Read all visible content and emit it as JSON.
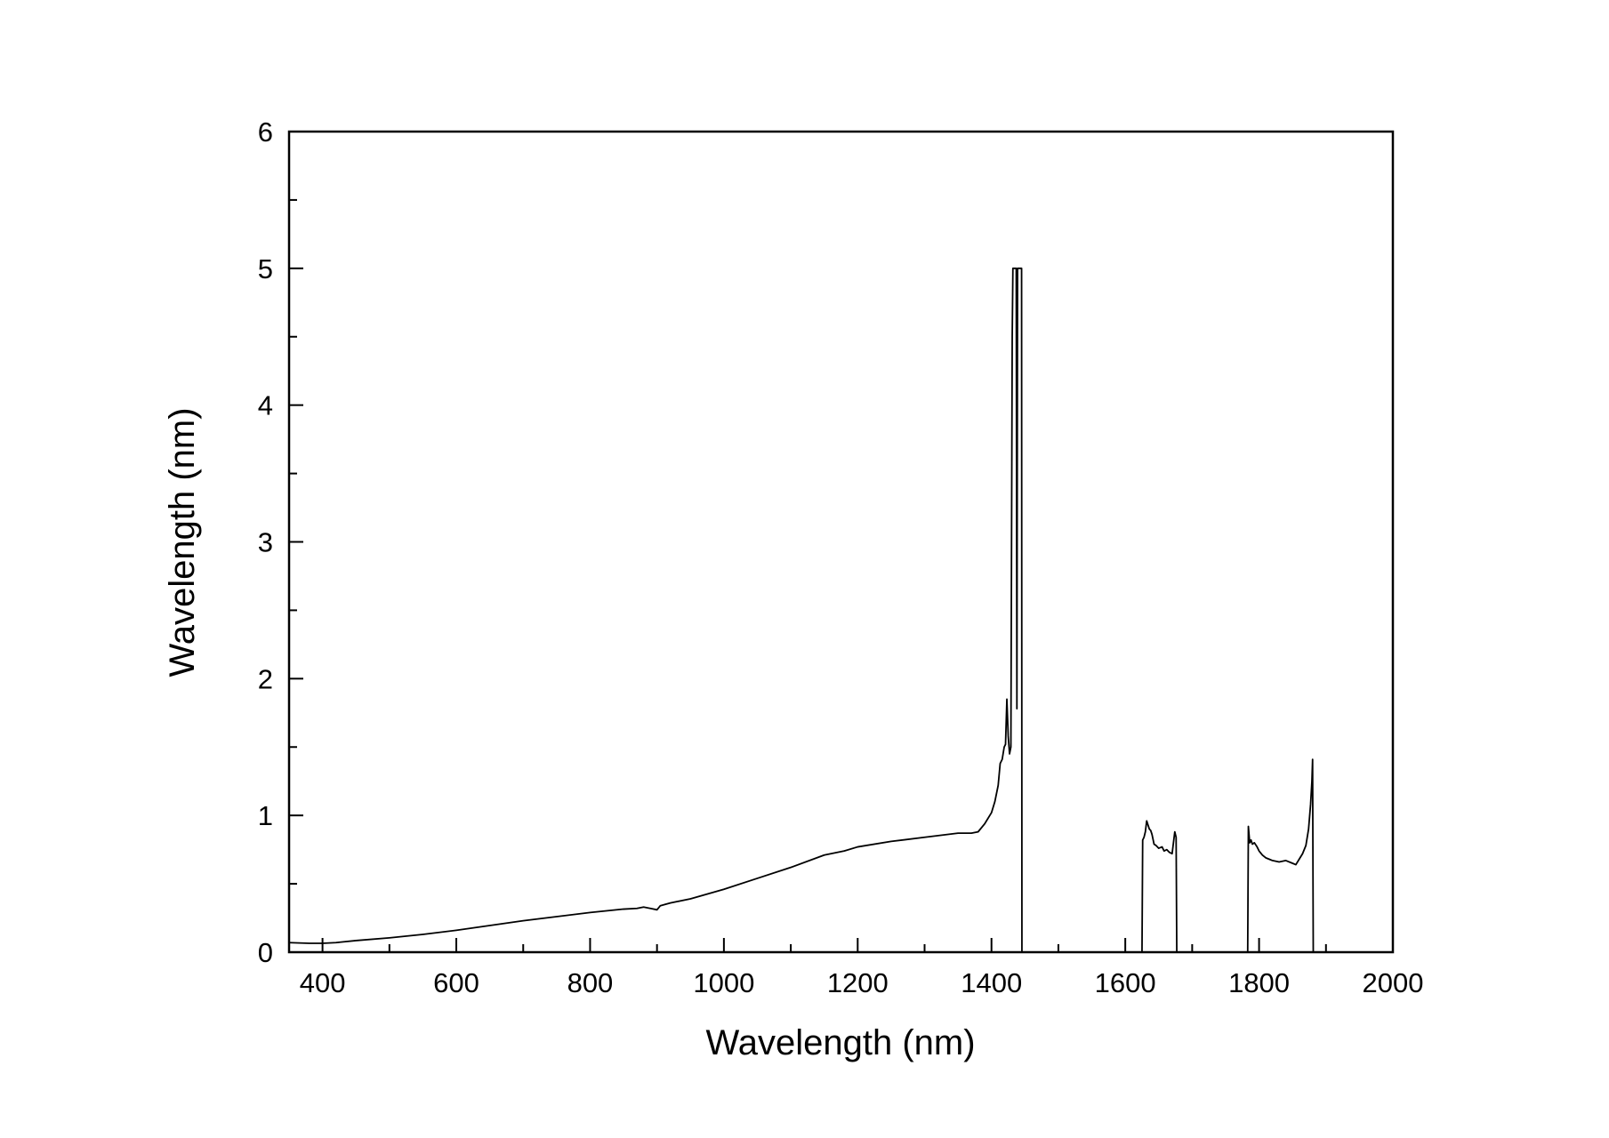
{
  "chart_data": {
    "type": "line",
    "xlabel": "Wavelength (nm)",
    "ylabel": "Wavelength (nm)",
    "xlim": [
      350,
      2000
    ],
    "ylim": [
      0,
      6
    ],
    "x_ticks": [
      400,
      600,
      800,
      1000,
      1200,
      1400,
      1600,
      1800,
      2000
    ],
    "x_tick_labels": [
      "400",
      "600",
      "800",
      "1000",
      "1200",
      "1400",
      "1600",
      "1800",
      "2000"
    ],
    "x_minor_step": 100,
    "y_ticks": [
      0,
      1,
      2,
      3,
      4,
      5,
      6
    ],
    "y_tick_labels": [
      "0",
      "1",
      "2",
      "3",
      "4",
      "5",
      "6"
    ],
    "y_minor_step": 0.5,
    "grid": false,
    "line_color": "#000000",
    "series": [
      {
        "segments": [
          [
            [
              350,
              0.07
            ],
            [
              380,
              0.065
            ],
            [
              400,
              0.065
            ],
            [
              420,
              0.07
            ],
            [
              450,
              0.085
            ],
            [
              500,
              0.105
            ],
            [
              550,
              0.13
            ],
            [
              600,
              0.16
            ],
            [
              650,
              0.195
            ],
            [
              700,
              0.23
            ],
            [
              750,
              0.26
            ],
            [
              800,
              0.29
            ],
            [
              850,
              0.315
            ],
            [
              870,
              0.32
            ],
            [
              880,
              0.33
            ],
            [
              890,
              0.32
            ],
            [
              900,
              0.31
            ],
            [
              905,
              0.34
            ],
            [
              920,
              0.36
            ],
            [
              950,
              0.39
            ],
            [
              1000,
              0.46
            ],
            [
              1050,
              0.54
            ],
            [
              1100,
              0.62
            ],
            [
              1150,
              0.71
            ],
            [
              1180,
              0.74
            ],
            [
              1200,
              0.77
            ],
            [
              1250,
              0.81
            ],
            [
              1300,
              0.84
            ],
            [
              1350,
              0.87
            ],
            [
              1370,
              0.87
            ],
            [
              1380,
              0.88
            ],
            [
              1390,
              0.94
            ],
            [
              1400,
              1.02
            ],
            [
              1405,
              1.1
            ],
            [
              1410,
              1.22
            ],
            [
              1413,
              1.38
            ],
            [
              1416,
              1.41
            ],
            [
              1419,
              1.5
            ],
            [
              1421,
              1.52
            ],
            [
              1423,
              1.85
            ],
            [
              1425,
              1.58
            ],
            [
              1427,
              1.45
            ],
            [
              1429,
              1.5
            ],
            [
              1431,
              4.5
            ],
            [
              1432,
              5.0
            ],
            [
              1437,
              5.0
            ],
            [
              1438,
              1.78
            ],
            [
              1439,
              5.0
            ],
            [
              1445,
              5.0
            ],
            [
              1445.5,
              0
            ]
          ],
          [
            [
              1625,
              0
            ],
            [
              1626,
              0.82
            ],
            [
              1628,
              0.84
            ],
            [
              1630,
              0.88
            ],
            [
              1632,
              0.96
            ],
            [
              1634,
              0.93
            ],
            [
              1636,
              0.9
            ],
            [
              1638,
              0.89
            ],
            [
              1640,
              0.86
            ],
            [
              1643,
              0.79
            ],
            [
              1646,
              0.78
            ],
            [
              1650,
              0.76
            ],
            [
              1655,
              0.77
            ],
            [
              1658,
              0.74
            ],
            [
              1662,
              0.75
            ],
            [
              1666,
              0.73
            ],
            [
              1670,
              0.72
            ],
            [
              1672,
              0.8
            ],
            [
              1674,
              0.88
            ],
            [
              1676,
              0.84
            ],
            [
              1677,
              0
            ]
          ],
          [
            [
              1783,
              0
            ],
            [
              1784,
              0.92
            ],
            [
              1786,
              0.8
            ],
            [
              1788,
              0.82
            ],
            [
              1790,
              0.79
            ],
            [
              1793,
              0.8
            ],
            [
              1797,
              0.77
            ],
            [
              1800,
              0.74
            ],
            [
              1805,
              0.71
            ],
            [
              1810,
              0.69
            ],
            [
              1815,
              0.68
            ],
            [
              1820,
              0.67
            ],
            [
              1830,
              0.66
            ],
            [
              1840,
              0.67
            ],
            [
              1850,
              0.65
            ],
            [
              1855,
              0.64
            ],
            [
              1860,
              0.68
            ],
            [
              1865,
              0.72
            ],
            [
              1870,
              0.78
            ],
            [
              1874,
              0.9
            ],
            [
              1877,
              1.08
            ],
            [
              1879,
              1.25
            ],
            [
              1880,
              1.41
            ],
            [
              1881,
              0
            ]
          ]
        ]
      }
    ]
  }
}
